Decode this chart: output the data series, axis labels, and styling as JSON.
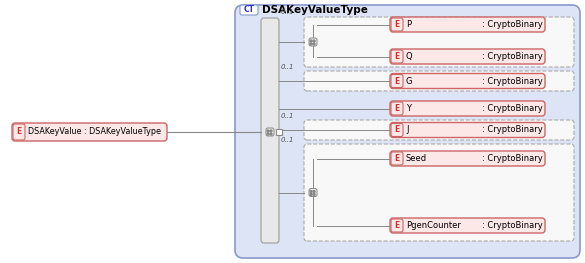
{
  "title": "DSAKeyValueType",
  "ct_label": "CT",
  "left_element": "DSAKeyValue : DSAKeyValueType",
  "left_e_label": "E",
  "bg_color": "#dde4f5",
  "bg_border_color": "#8899cc",
  "element_fill": "#fde8e8",
  "element_border": "#cc6666",
  "e_box_fill": "#fde8e8",
  "e_box_border": "#cc6666",
  "seq_fill": "#f0f0f0",
  "seq_border": "#aaaaaa",
  "dashed_fill": "#f8f8f8",
  "dashed_border": "#aaaaaa",
  "main_bar_fill": "#e8e8e8",
  "main_bar_border": "#999999",
  "elements": [
    {
      "name": "P",
      "type": ": CryptoBinary",
      "group": 0,
      "optional": true
    },
    {
      "name": "Q",
      "type": ": CryptoBinary",
      "group": 0,
      "optional": true
    },
    {
      "name": "G",
      "type": ": CryptoBinary",
      "group": 1,
      "optional": true
    },
    {
      "name": "Y",
      "type": ": CryptoBinary",
      "group": 2,
      "optional": false
    },
    {
      "name": "J",
      "type": ": CryptoBinary",
      "group": 3,
      "optional": true
    },
    {
      "name": "Seed",
      "type": ": CryptoBinary",
      "group": 4,
      "optional": true
    },
    {
      "name": "PgenCounter",
      "type": ": CryptoBinary",
      "group": 4,
      "optional": true
    }
  ]
}
